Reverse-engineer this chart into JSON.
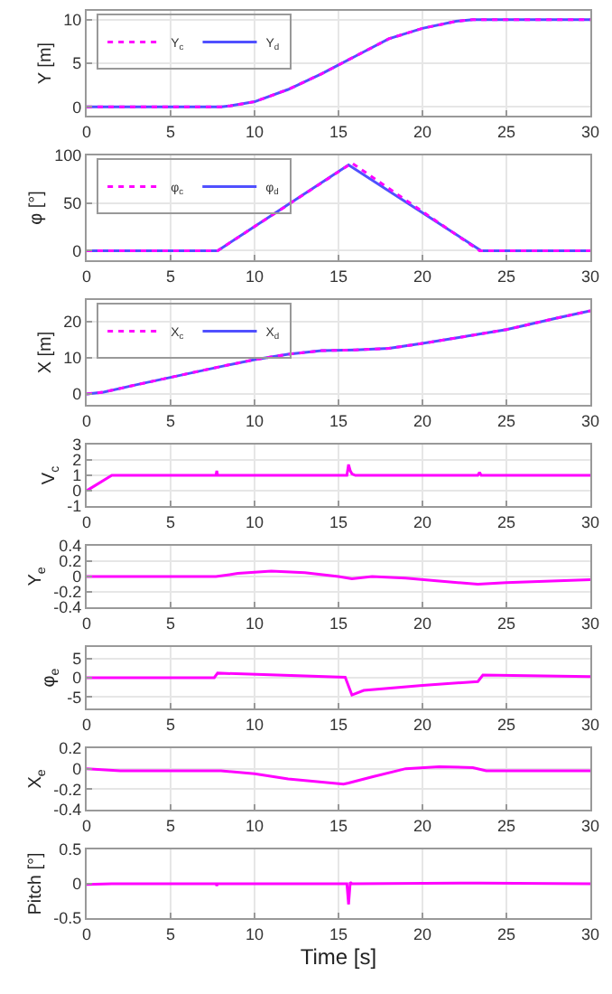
{
  "chart_data": [
    {
      "type": "line",
      "ylabel": "Y [m]",
      "xlim": [
        0,
        30
      ],
      "xticks": [
        0,
        5,
        10,
        15,
        20,
        25,
        30
      ],
      "ylim": [
        -1,
        11
      ],
      "yticks": [
        0,
        5,
        10
      ],
      "grid": true,
      "legend": "top left",
      "series": [
        {
          "name": "Y$_{c}$",
          "color": "#ff00ff",
          "line_style": "dotted",
          "x": [
            0,
            8,
            8.5,
            10,
            12,
            14,
            15,
            16,
            18,
            20,
            22,
            23,
            30
          ],
          "values": [
            0,
            0,
            0.1,
            0.6,
            2.0,
            3.8,
            4.8,
            5.8,
            7.8,
            9.0,
            9.8,
            10,
            10
          ]
        },
        {
          "name": "Y$_{d}$",
          "color": "#5050ff",
          "line_style": "solid",
          "x": [
            0,
            8,
            8.5,
            10,
            12,
            14,
            15,
            16,
            18,
            20,
            22,
            23,
            30
          ],
          "values": [
            0,
            0,
            0.1,
            0.6,
            2.0,
            3.8,
            4.8,
            5.8,
            7.8,
            9.0,
            9.8,
            10,
            10
          ]
        }
      ]
    },
    {
      "type": "line",
      "ylabel": "φ [°]",
      "xlim": [
        0,
        30
      ],
      "xticks": [
        0,
        5,
        10,
        15,
        20,
        25,
        30
      ],
      "ylim": [
        -10,
        100
      ],
      "yticks": [
        0,
        50,
        100
      ],
      "grid": true,
      "legend": "top left",
      "series": [
        {
          "name": "φ$_{c}$",
          "color": "#ff00ff",
          "line_style": "dotted",
          "x": [
            0,
            7.8,
            15.8,
            23.4,
            30
          ],
          "values": [
            0,
            0,
            92,
            0,
            0
          ]
        },
        {
          "name": "φ$_{d}$",
          "color": "#5050ff",
          "line_style": "solid",
          "x": [
            0,
            7.8,
            15.6,
            23.5,
            30
          ],
          "values": [
            0,
            0,
            90,
            0,
            0
          ]
        }
      ]
    },
    {
      "type": "line",
      "ylabel": "X [m]",
      "xlim": [
        0,
        30
      ],
      "xticks": [
        0,
        5,
        10,
        15,
        20,
        25,
        30
      ],
      "ylim": [
        -3,
        26
      ],
      "yticks": [
        0,
        10,
        20
      ],
      "grid": true,
      "legend": "top left",
      "series": [
        {
          "name": "X$_{c}$",
          "color": "#ff00ff",
          "line_style": "dotted",
          "x": [
            0,
            1,
            3,
            5,
            8,
            10,
            12,
            14,
            16,
            18,
            20,
            22,
            25,
            28,
            30
          ],
          "values": [
            0,
            0.5,
            2.6,
            4.6,
            7.6,
            9.5,
            11,
            12,
            12.2,
            12.6,
            14,
            15.5,
            17.8,
            21,
            23
          ]
        },
        {
          "name": "X$_{d}$",
          "color": "#5050ff",
          "line_style": "solid",
          "x": [
            0,
            1,
            3,
            5,
            8,
            10,
            12,
            14,
            16,
            18,
            20,
            22,
            25,
            28,
            30
          ],
          "values": [
            0,
            0.5,
            2.6,
            4.6,
            7.6,
            9.5,
            11,
            12,
            12.2,
            12.6,
            14,
            15.5,
            17.8,
            21,
            23
          ]
        }
      ]
    },
    {
      "type": "line",
      "ylabel": "V$_{c}$",
      "xlim": [
        0,
        30
      ],
      "xticks": [
        0,
        5,
        10,
        15,
        20,
        25,
        30
      ],
      "ylim": [
        -1,
        3
      ],
      "yticks": [
        -1,
        0,
        1,
        2,
        3
      ],
      "grid": true,
      "series": [
        {
          "color": "#ff00ff",
          "line_style": "solid",
          "x": [
            0,
            0.3,
            1.5,
            7.7,
            7.75,
            7.8,
            15.5,
            15.6,
            15.7,
            15.8,
            16,
            23.3,
            23.4,
            23.5,
            30
          ],
          "values": [
            0,
            0.2,
            1,
            1,
            1.3,
            1,
            1,
            1.7,
            1.3,
            1.1,
            1,
            1,
            1.2,
            1,
            1
          ]
        }
      ]
    },
    {
      "type": "line",
      "ylabel": "Y$_{e}$",
      "xlim": [
        0,
        30
      ],
      "xticks": [
        0,
        5,
        10,
        15,
        20,
        25,
        30
      ],
      "ylim": [
        -0.4,
        0.4
      ],
      "yticks": [
        -0.4,
        -0.2,
        0,
        0.2,
        0.4
      ],
      "grid": true,
      "series": [
        {
          "color": "#ff00ff",
          "line_style": "solid",
          "x": [
            0,
            7.7,
            9,
            11,
            13,
            15,
            15.8,
            17,
            19,
            21,
            23.3,
            25,
            30
          ],
          "values": [
            0,
            0,
            0.04,
            0.07,
            0.05,
            0,
            -0.03,
            0,
            -0.02,
            -0.06,
            -0.1,
            -0.08,
            -0.04
          ]
        }
      ]
    },
    {
      "type": "line",
      "ylabel": "φ$_{e}$",
      "xlim": [
        0,
        30
      ],
      "xticks": [
        0,
        5,
        10,
        15,
        20,
        25,
        30
      ],
      "ylim": [
        -8,
        8
      ],
      "yticks": [
        -5,
        0,
        5
      ],
      "grid": true,
      "series": [
        {
          "color": "#ff00ff",
          "line_style": "solid",
          "x": [
            0,
            7.6,
            7.8,
            15.4,
            15.8,
            16.5,
            20,
            23.3,
            23.6,
            30
          ],
          "values": [
            0,
            0,
            1.2,
            0.1,
            -4.5,
            -3.3,
            -2,
            -1,
            0.7,
            0.3
          ]
        }
      ]
    },
    {
      "type": "line",
      "ylabel": "X$_{e}$",
      "xlim": [
        0,
        30
      ],
      "xticks": [
        0,
        5,
        10,
        15,
        20,
        25,
        30
      ],
      "ylim": [
        -0.4,
        0.2
      ],
      "yticks": [
        -0.4,
        -0.2,
        0,
        0.2
      ],
      "grid": true,
      "series": [
        {
          "color": "#ff00ff",
          "line_style": "solid",
          "x": [
            0,
            2,
            8,
            10,
            12,
            15.3,
            15.6,
            17,
            19,
            21,
            23,
            23.8,
            30
          ],
          "values": [
            0,
            -0.02,
            -0.02,
            -0.05,
            -0.1,
            -0.15,
            -0.14,
            -0.08,
            0,
            0.02,
            0.01,
            -0.02,
            -0.02
          ]
        }
      ]
    },
    {
      "type": "line",
      "xlabel": "Time [s]",
      "ylabel": "Pitch [°]",
      "xlim": [
        0,
        30
      ],
      "xticks": [
        0,
        5,
        10,
        15,
        20,
        25,
        30
      ],
      "ylim": [
        -0.5,
        0.5
      ],
      "yticks": [
        -0.5,
        0,
        0.5
      ],
      "grid": true,
      "series": [
        {
          "color": "#ff00ff",
          "line_style": "solid",
          "x": [
            0,
            1.5,
            7.7,
            7.75,
            7.8,
            15.5,
            15.6,
            15.7,
            15.8,
            23.4,
            30
          ],
          "values": [
            -0.01,
            0,
            0,
            -0.03,
            0,
            0,
            -0.3,
            0.02,
            0,
            0.01,
            0
          ]
        }
      ]
    }
  ]
}
